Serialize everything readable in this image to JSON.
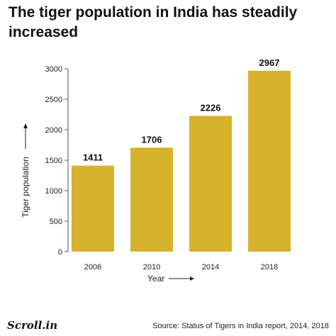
{
  "chart_data": {
    "type": "bar",
    "title": "The tiger population in India has steadily increased",
    "xlabel": "Year",
    "ylabel": "Tiger population",
    "categories": [
      "2006",
      "2010",
      "2014",
      "2018"
    ],
    "values": [
      1411,
      1706,
      2226,
      2967
    ],
    "data_labels": [
      "1411",
      "1706",
      "2226",
      "2967"
    ],
    "ylim": [
      0,
      3000
    ],
    "yticks": [
      "0",
      "500",
      "1000",
      "1500",
      "2000",
      "2500",
      "3000"
    ],
    "grid": false,
    "legend": "none",
    "bar_color": "#d6b22d"
  },
  "footer": {
    "brand": "Scroll.in",
    "source": "Source: Status of Tigers in India report, 2014, 2018"
  }
}
